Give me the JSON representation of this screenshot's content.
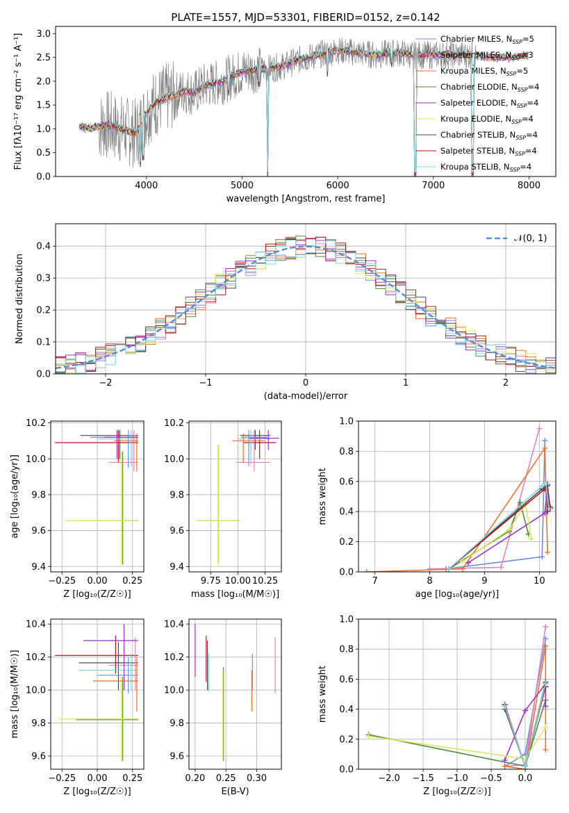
{
  "title": "PLATE=1557, MJD=53301, FIBERID=0152, z=0.142",
  "colors": {
    "chabrier_miles": "#6a8fdc",
    "salpeter_miles": "#e87fc0",
    "kroupa_miles": "#e8732a",
    "chabrier_elodie": "#4f8a3c",
    "salpeter_elodie": "#9b30c8",
    "kroupa_elodie": "#d8e85a",
    "chabrier_stelib": "#4a4a4a",
    "salpeter_stelib": "#b0141c",
    "kroupa_stelib": "#7fd4dc",
    "data": "#808080",
    "gaussian": "#5b8ad6",
    "green": "#7bb83a"
  },
  "chart_data": [
    {
      "type": "line",
      "panel": "spectrum",
      "xlabel": "wavelength [Angstrom, rest frame]",
      "ylabel": "Flux [fλ10⁻¹⁷ erg cm⁻² s⁻¹ A⁻¹]",
      "xlim": [
        3050,
        8280
      ],
      "ylim": [
        0,
        3.15
      ],
      "xticks": [
        "4000",
        "5000",
        "6000",
        "7000",
        "8000"
      ],
      "yticks": [
        "0.0",
        "0.5",
        "1.0",
        "1.5",
        "2.0",
        "2.5",
        "3.0"
      ],
      "legend_position": "upper right",
      "series": [
        {
          "name": "Chabrier MILES, N_SSP=5",
          "color_key": "chabrier_miles"
        },
        {
          "name": "Salpeter MILES, N_SSP=3",
          "color_key": "salpeter_miles"
        },
        {
          "name": "Kroupa MILES, N_SSP=5",
          "color_key": "kroupa_miles"
        },
        {
          "name": "Chabrier ELODIE, N_SSP=4",
          "color_key": "chabrier_elodie"
        },
        {
          "name": "Salpeter ELODIE, N_SSP=4",
          "color_key": "salpeter_elodie"
        },
        {
          "name": "Kroupa ELODIE, N_SSP=4",
          "color_key": "kroupa_elodie"
        },
        {
          "name": "Chabrier STELIB, N_SSP=4",
          "color_key": "chabrier_stelib"
        },
        {
          "name": "Salpeter STELIB, N_SSP=4",
          "color_key": "salpeter_stelib"
        },
        {
          "name": "Kroupa STELIB, N_SSP=4",
          "color_key": "kroupa_stelib"
        }
      ],
      "model_continuum": {
        "x": [
          3300,
          3400,
          3500,
          3600,
          3700,
          3800,
          3900,
          4000,
          4100,
          4200,
          4300,
          4400,
          4500,
          4600,
          4700,
          4800,
          4900,
          5000,
          5200,
          5400,
          5600,
          5800,
          6000,
          6200,
          6400,
          6600,
          6800,
          7000,
          7200,
          7400,
          7600,
          7800,
          8000
        ],
        "y": [
          1.05,
          1.0,
          1.05,
          1.08,
          1.02,
          0.95,
          0.9,
          1.35,
          1.55,
          1.65,
          1.7,
          1.8,
          1.75,
          1.9,
          1.95,
          2.0,
          2.1,
          2.2,
          2.25,
          2.3,
          2.45,
          2.55,
          2.65,
          2.6,
          2.55,
          2.6,
          2.55,
          2.55,
          2.55,
          2.55,
          2.5,
          2.5,
          2.55
        ]
      },
      "absorption_lines": [
        {
          "x": 3934,
          "y": 0.2
        },
        {
          "x": 3969,
          "y": 0.35
        },
        {
          "x": 4861,
          "y": 1.7
        },
        {
          "x": 5175,
          "y": 1.9
        },
        {
          "x": 5270,
          "y": 0.0
        },
        {
          "x": 5893,
          "y": 2.1
        },
        {
          "x": 6563,
          "y": 2.3
        },
        {
          "x": 6810,
          "y": 0.0
        },
        {
          "x": 7410,
          "y": 0.0
        }
      ]
    },
    {
      "type": "histogram",
      "panel": "residuals",
      "xlabel": "(data-model)/error",
      "ylabel": "Normed distribution",
      "xlim": [
        -2.5,
        2.5
      ],
      "ylim": [
        0,
        0.47
      ],
      "xticks": [
        "−2",
        "−1",
        "0",
        "1",
        "2"
      ],
      "yticks": [
        "0.0",
        "0.1",
        "0.2",
        "0.3",
        "0.4"
      ],
      "legend": [
        {
          "name": "𝒩(0, 1)",
          "style": "dashed",
          "color_key": "gaussian"
        }
      ],
      "bin_width": 0.1,
      "reference_density": "normal(0,1)"
    },
    {
      "type": "errorbar",
      "panel": "age-vs-Z",
      "xlabel": "Z [log₁₀(Z/Z☉)]",
      "ylabel": "age  [log₁₀(age/yr)]",
      "xlim": [
        -0.33,
        0.33
      ],
      "ylim": [
        9.37,
        10.21
      ],
      "xticks": [
        "−0.25",
        "0.00",
        "0.25"
      ],
      "yticks": [
        "9.4",
        "9.6",
        "9.8",
        "10.0",
        "10.2"
      ],
      "points": [
        {
          "key": "chabrier_elodie",
          "x": 0.18,
          "y": 9.655,
          "xlo": -0.13,
          "xhi": 0.29,
          "ylo": 9.41,
          "yhi": 10.04
        },
        {
          "key": "kroupa_elodie",
          "x": 0.17,
          "y": 9.655,
          "xlo": -0.23,
          "xhi": 0.29,
          "ylo": 9.41,
          "yhi": 10.04
        },
        {
          "key": "chabrier_stelib",
          "x": 0.16,
          "y": 10.13,
          "xlo": -0.12,
          "xhi": 0.29,
          "ylo": 10.0,
          "yhi": 10.16
        },
        {
          "key": "salpeter_stelib",
          "x": 0.15,
          "y": 10.09,
          "xlo": -0.3,
          "xhi": 0.29,
          "ylo": 9.98,
          "yhi": 10.16
        },
        {
          "key": "chabrier_miles",
          "x": 0.22,
          "y": 10.12,
          "xlo": -0.05,
          "xhi": 0.29,
          "ylo": 9.95,
          "yhi": 10.16
        },
        {
          "key": "kroupa_stelib",
          "x": 0.24,
          "y": 10.11,
          "xlo": 0.0,
          "xhi": 0.29,
          "ylo": 9.96,
          "yhi": 10.16
        },
        {
          "key": "salpeter_miles",
          "x": 0.26,
          "y": 9.98,
          "xlo": 0.08,
          "xhi": 0.29,
          "ylo": 9.93,
          "yhi": 10.16
        },
        {
          "key": "kroupa_miles",
          "x": 0.28,
          "y": 10.1,
          "xlo": 0.12,
          "xhi": 0.29,
          "ylo": 9.93,
          "yhi": 10.14
        },
        {
          "key": "salpeter_elodie",
          "x": 0.14,
          "y": 10.12,
          "xlo": 0.05,
          "xhi": 0.29,
          "ylo": 10.0,
          "yhi": 10.16
        }
      ]
    },
    {
      "type": "errorbar",
      "panel": "age-vs-mass",
      "xlabel": "mass [log₁₀(M/M☉)]",
      "ylabel": "",
      "xlim": [
        9.55,
        10.4
      ],
      "ylim": [
        9.37,
        10.21
      ],
      "xticks": [
        "9.75",
        "10.00",
        "10.25"
      ],
      "yticks": [
        "9.4",
        "9.6",
        "9.8",
        "10.0",
        "10.2"
      ],
      "points": [
        {
          "key": "chabrier_elodie",
          "x": 9.82,
          "y": 9.655,
          "xlo": 9.62,
          "xhi": 10.02,
          "ylo": 9.41,
          "yhi": 10.08
        },
        {
          "key": "kroupa_elodie",
          "x": 9.82,
          "y": 9.655,
          "xlo": 9.62,
          "xhi": 10.02,
          "ylo": 9.41,
          "yhi": 10.08
        },
        {
          "key": "chabrier_stelib",
          "x": 10.16,
          "y": 10.13,
          "xlo": 10.02,
          "xhi": 10.3,
          "ylo": 10.05,
          "yhi": 10.16
        },
        {
          "key": "salpeter_stelib",
          "x": 10.2,
          "y": 10.09,
          "xlo": 10.05,
          "xhi": 10.35,
          "ylo": 10.0,
          "yhi": 10.16
        },
        {
          "key": "chabrier_miles",
          "x": 10.1,
          "y": 10.12,
          "xlo": 10.03,
          "xhi": 10.27,
          "ylo": 9.96,
          "yhi": 10.16
        },
        {
          "key": "kroupa_stelib",
          "x": 10.12,
          "y": 10.11,
          "xlo": 10.0,
          "xhi": 10.3,
          "ylo": 9.97,
          "yhi": 10.16
        },
        {
          "key": "salpeter_miles",
          "x": 10.15,
          "y": 9.98,
          "xlo": 9.98,
          "xhi": 10.3,
          "ylo": 9.93,
          "yhi": 10.16
        },
        {
          "key": "kroupa_miles",
          "x": 10.05,
          "y": 10.1,
          "xlo": 9.95,
          "xhi": 10.25,
          "ylo": 9.98,
          "yhi": 10.14
        },
        {
          "key": "salpeter_elodie",
          "x": 10.28,
          "y": 10.115,
          "xlo": 10.1,
          "xhi": 10.38,
          "ylo": 10.05,
          "yhi": 10.16
        }
      ]
    },
    {
      "type": "line",
      "panel": "weight-vs-age",
      "xlabel": "age  [log₁₀(age/yr)]",
      "ylabel": "mass weight",
      "xlim": [
        6.7,
        10.3
      ],
      "ylim": [
        0,
        1
      ],
      "xticks": [
        "7",
        "8",
        "9",
        "10"
      ],
      "yticks": [
        "0.0",
        "0.2",
        "0.4",
        "0.6",
        "0.8",
        "1.0"
      ],
      "series": [
        {
          "key": "chabrier_miles",
          "x": [
            8.3,
            10.05,
            10.1
          ],
          "y": [
            0.02,
            0.1,
            0.87
          ]
        },
        {
          "key": "salpeter_miles",
          "x": [
            8.0,
            9.3,
            10.0
          ],
          "y": [
            0.02,
            0.03,
            0.95
          ]
        },
        {
          "key": "kroupa_miles",
          "x": [
            6.85,
            8.6,
            10.1,
            10.15
          ],
          "y": [
            0.0,
            0.02,
            0.82,
            0.13
          ]
        },
        {
          "key": "chabrier_elodie",
          "x": [
            8.35,
            9.45,
            9.65,
            9.8
          ],
          "y": [
            0.02,
            0.27,
            0.46,
            0.25
          ]
        },
        {
          "key": "salpeter_elodie",
          "x": [
            8.7,
            10.1,
            10.15,
            10.2
          ],
          "y": [
            0.06,
            0.39,
            0.57,
            0.42
          ]
        },
        {
          "key": "kroupa_elodie",
          "x": [
            8.6,
            9.45,
            9.75,
            9.85
          ],
          "y": [
            0.07,
            0.28,
            0.45,
            0.22
          ]
        },
        {
          "key": "chabrier_stelib",
          "x": [
            8.35,
            10.05,
            10.15,
            10.15
          ],
          "y": [
            0.02,
            0.55,
            0.58,
            0.4
          ]
        },
        {
          "key": "salpeter_stelib",
          "x": [
            8.35,
            10.1,
            10.12,
            10.2
          ],
          "y": [
            0.02,
            0.55,
            0.57,
            0.43
          ]
        },
        {
          "key": "kroupa_stelib",
          "x": [
            8.35,
            10.05,
            10.12,
            10.18
          ],
          "y": [
            0.02,
            0.57,
            0.58,
            0.42
          ]
        }
      ]
    },
    {
      "type": "errorbar",
      "panel": "mass-vs-Z",
      "xlabel": "Z [log₁₀(Z/Z☉)]",
      "ylabel": "mass [log₁₀(M/M☉)]",
      "xlim": [
        -0.33,
        0.33
      ],
      "ylim": [
        9.52,
        10.43
      ],
      "xticks": [
        "−0.25",
        "0.00",
        "0.25"
      ],
      "yticks": [
        "9.6",
        "9.8",
        "10.0",
        "10.2",
        "10.4"
      ],
      "points": [
        {
          "key": "chabrier_elodie",
          "x": 0.18,
          "y": 9.82,
          "xlo": -0.15,
          "xhi": 0.29,
          "ylo": 9.57,
          "yhi": 10.08
        },
        {
          "key": "kroupa_elodie",
          "x": 0.17,
          "y": 9.825,
          "xlo": -0.27,
          "xhi": 0.29,
          "ylo": 9.57,
          "yhi": 10.08
        },
        {
          "key": "chabrier_stelib",
          "x": 0.15,
          "y": 10.165,
          "xlo": -0.13,
          "xhi": 0.29,
          "ylo": 10.0,
          "yhi": 10.29
        },
        {
          "key": "salpeter_stelib",
          "x": 0.13,
          "y": 10.21,
          "xlo": -0.3,
          "xhi": 0.29,
          "ylo": 10.1,
          "yhi": 10.33
        },
        {
          "key": "chabrier_miles",
          "x": 0.22,
          "y": 10.09,
          "xlo": 0.0,
          "xhi": 0.29,
          "ylo": 9.98,
          "yhi": 10.2
        },
        {
          "key": "kroupa_stelib",
          "x": 0.24,
          "y": 10.12,
          "xlo": -0.13,
          "xhi": 0.29,
          "ylo": 10.0,
          "yhi": 10.22
        },
        {
          "key": "salpeter_miles",
          "x": 0.27,
          "y": 10.15,
          "xlo": 0.08,
          "xhi": 0.29,
          "ylo": 10.0,
          "yhi": 10.32
        },
        {
          "key": "kroupa_miles",
          "x": 0.28,
          "y": 10.055,
          "xlo": -0.03,
          "xhi": 0.29,
          "ylo": 9.87,
          "yhi": 10.2
        },
        {
          "key": "salpeter_elodie",
          "x": 0.19,
          "y": 10.3,
          "xlo": -0.1,
          "xhi": 0.29,
          "ylo": 10.0,
          "yhi": 10.4
        }
      ]
    },
    {
      "type": "errorbar",
      "panel": "mass-vs-ebv",
      "xlabel": "E(B-V)",
      "ylabel": "",
      "xlim": [
        0.19,
        0.34
      ],
      "ylim": [
        9.52,
        10.43
      ],
      "xticks": [
        "0.20",
        "0.25",
        "0.30"
      ],
      "yticks": [
        "9.6",
        "9.8",
        "10.0",
        "10.2",
        "10.4"
      ],
      "points": [
        {
          "key": "salpeter_elodie",
          "x": 0.2,
          "y": 10.25,
          "ylo": 10.08,
          "yhi": 10.4
        },
        {
          "key": "salpeter_stelib",
          "x": 0.218,
          "y": 10.2,
          "ylo": 10.05,
          "yhi": 10.33
        },
        {
          "key": "chabrier_stelib",
          "x": 0.22,
          "y": 10.15,
          "ylo": 10.0,
          "yhi": 10.3
        },
        {
          "key": "kroupa_stelib",
          "x": 0.222,
          "y": 10.12,
          "ylo": 9.99,
          "yhi": 10.22
        },
        {
          "key": "chabrier_elodie",
          "x": 0.246,
          "y": 9.82,
          "ylo": 9.57,
          "yhi": 10.14
        },
        {
          "key": "kroupa_elodie",
          "x": 0.245,
          "y": 9.82,
          "ylo": 9.58,
          "yhi": 10.12
        },
        {
          "key": "kroupa_miles",
          "x": 0.292,
          "y": 10.05,
          "ylo": 9.87,
          "yhi": 10.12
        },
        {
          "key": "chabrier_miles",
          "x": 0.293,
          "y": 10.12,
          "ylo": 10.0,
          "yhi": 10.22
        },
        {
          "key": "salpeter_miles",
          "x": 0.33,
          "y": 10.15,
          "ylo": 9.98,
          "yhi": 10.32
        }
      ]
    },
    {
      "type": "line",
      "panel": "weight-vs-Z",
      "xlabel": "Z [log₁₀(Z/Z☉)]",
      "ylabel": "mass weight",
      "xlim": [
        -2.45,
        0.45
      ],
      "ylim": [
        0,
        1
      ],
      "xticks": [
        "−2.0",
        "−1.5",
        "−1.0",
        "−0.5",
        "0.0"
      ],
      "yticks": [
        "0.0",
        "0.2",
        "0.4",
        "0.6",
        "0.8",
        "1.0"
      ],
      "series": [
        {
          "key": "chabrier_miles",
          "x": [
            -0.3,
            0.0,
            0.3
          ],
          "y": [
            0.02,
            0.1,
            0.87
          ]
        },
        {
          "key": "salpeter_miles",
          "x": [
            -0.3,
            0.0,
            0.3
          ],
          "y": [
            0.02,
            0.03,
            0.95
          ]
        },
        {
          "key": "kroupa_miles",
          "x": [
            -0.3,
            0.0,
            0.3,
            0.3
          ],
          "y": [
            0.02,
            0.0,
            0.82,
            0.13
          ]
        },
        {
          "key": "chabrier_elodie",
          "x": [
            -2.3,
            0.0,
            0.3
          ],
          "y": [
            0.23,
            0.02,
            0.46
          ]
        },
        {
          "key": "salpeter_elodie",
          "x": [
            -0.3,
            0.0,
            0.3,
            0.3
          ],
          "y": [
            0.06,
            0.39,
            0.57,
            0.42
          ]
        },
        {
          "key": "kroupa_elodie",
          "x": [
            -2.3,
            0.0,
            0.3
          ],
          "y": [
            0.22,
            0.07,
            0.28
          ]
        },
        {
          "key": "chabrier_stelib",
          "x": [
            -0.3,
            0.0,
            0.3
          ],
          "y": [
            0.4,
            0.02,
            0.58
          ]
        },
        {
          "key": "salpeter_stelib",
          "x": [
            -0.3,
            0.0,
            0.3
          ],
          "y": [
            0.43,
            0.02,
            0.55
          ]
        },
        {
          "key": "kroupa_stelib",
          "x": [
            -0.3,
            0.0,
            0.3
          ],
          "y": [
            0.42,
            0.02,
            0.57
          ]
        }
      ]
    }
  ]
}
